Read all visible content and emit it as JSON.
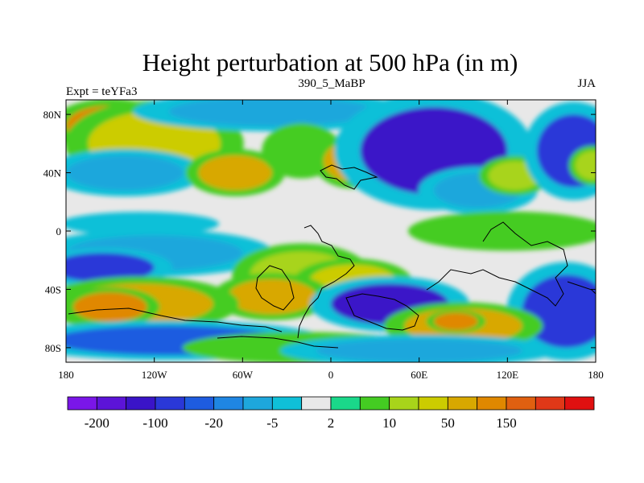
{
  "chart_data": {
    "type": "heatmap",
    "title": "Height perturbation at 500 hPa (in m)",
    "subtitle_left": "Expt = teYFa3",
    "subtitle_center": "390_5_MaBP",
    "subtitle_right": "JJA",
    "xlim": [
      -180,
      180
    ],
    "ylim": [
      -90,
      90
    ],
    "x_ticks": [
      {
        "value": -180,
        "label": "180"
      },
      {
        "value": -120,
        "label": "120W"
      },
      {
        "value": -60,
        "label": "60W"
      },
      {
        "value": 0,
        "label": "0"
      },
      {
        "value": 60,
        "label": "60E"
      },
      {
        "value": 120,
        "label": "120E"
      },
      {
        "value": 180,
        "label": "180"
      }
    ],
    "y_ticks": [
      {
        "value": 80,
        "label": "80N"
      },
      {
        "value": 40,
        "label": "40N"
      },
      {
        "value": 0,
        "label": "0"
      },
      {
        "value": -40,
        "label": "40S"
      },
      {
        "value": -80,
        "label": "80S"
      }
    ],
    "colorbar": {
      "colors": [
        "#7a16e8",
        "#5c14d8",
        "#3a14c8",
        "#2a38d8",
        "#1e5ce0",
        "#1f86e2",
        "#1ea7dc",
        "#0fc0d8",
        "#e8e8e8",
        "#1ad88a",
        "#44cc22",
        "#a8d41a",
        "#cccc00",
        "#d8a800",
        "#e08800",
        "#e06010",
        "#e03818",
        "#e01010"
      ],
      "tick_labels": [
        {
          "boundary": 1,
          "label": "-200"
        },
        {
          "boundary": 3,
          "label": "-100"
        },
        {
          "boundary": 5,
          "label": "-20"
        },
        {
          "boundary": 7,
          "label": "-5"
        },
        {
          "boundary": 9,
          "label": "2"
        },
        {
          "boundary": 11,
          "label": "10"
        },
        {
          "boundary": 13,
          "label": "50"
        },
        {
          "boundary": 15,
          "label": "150"
        }
      ]
    },
    "field_background": "#e8e8e8",
    "field_blobs": [
      {
        "lon": -150,
        "lat": 72,
        "rlon": 30,
        "rlat": 14,
        "v": 3
      },
      {
        "lon": -120,
        "lat": 60,
        "rlon": 45,
        "rlat": 22,
        "v": 2
      },
      {
        "lon": -140,
        "lat": 40,
        "rlon": 40,
        "rlat": 12,
        "v": -1.5
      },
      {
        "lon": -40,
        "lat": 82,
        "rlon": 70,
        "rlat": 10,
        "v": -1.5
      },
      {
        "lon": -65,
        "lat": 40,
        "rlon": 25,
        "rlat": 12,
        "v": 2.5
      },
      {
        "lon": -20,
        "lat": 55,
        "rlon": 20,
        "rlat": 14,
        "v": 1
      },
      {
        "lon": 15,
        "lat": 48,
        "rlon": 20,
        "rlat": 14,
        "v": 2.5
      },
      {
        "lon": 70,
        "lat": 55,
        "rlon": 50,
        "rlat": 30,
        "v": -2.5
      },
      {
        "lon": 100,
        "lat": 28,
        "rlon": 30,
        "rlat": 12,
        "v": -1
      },
      {
        "lon": 100,
        "lat": 28,
        "rlon": 30,
        "rlat": 12,
        "v": -1
      },
      {
        "lon": 125,
        "lat": 38,
        "rlon": 18,
        "rlat": 10,
        "v": 1.5
      },
      {
        "lon": 165,
        "lat": 55,
        "rlon": 25,
        "rlat": 25,
        "v": -2
      },
      {
        "lon": 178,
        "lat": 45,
        "rlon": 12,
        "rlat": 10,
        "v": 1.5
      },
      {
        "lon": -130,
        "lat": 5,
        "rlon": 40,
        "rlat": 6,
        "v": -0.8
      },
      {
        "lon": 120,
        "lat": 0,
        "rlon": 50,
        "rlat": 10,
        "v": 1.2
      },
      {
        "lon": -120,
        "lat": -15,
        "rlon": 60,
        "rlat": 12,
        "v": -1.5
      },
      {
        "lon": -155,
        "lat": -25,
        "rlon": 35,
        "rlat": 10,
        "v": -2
      },
      {
        "lon": -20,
        "lat": -30,
        "rlon": 35,
        "rlat": 16,
        "v": 1.5
      },
      {
        "lon": 15,
        "lat": -35,
        "rlon": 30,
        "rlat": 12,
        "v": 2
      },
      {
        "lon": -40,
        "lat": -45,
        "rlon": 30,
        "rlat": 12,
        "v": 2.5
      },
      {
        "lon": -130,
        "lat": -50,
        "rlon": 50,
        "rlat": 14,
        "v": 2.5
      },
      {
        "lon": -150,
        "lat": -52,
        "rlon": 25,
        "rlat": 10,
        "v": 3
      },
      {
        "lon": 40,
        "lat": -50,
        "rlon": 40,
        "rlat": 14,
        "v": -2.5
      },
      {
        "lon": 160,
        "lat": -55,
        "rlon": 30,
        "rlat": 25,
        "v": -2
      },
      {
        "lon": 90,
        "lat": -65,
        "rlon": 40,
        "rlat": 12,
        "v": 2.5
      },
      {
        "lon": 85,
        "lat": -62,
        "rlon": 15,
        "rlat": 6,
        "v": 3
      },
      {
        "lon": -110,
        "lat": -75,
        "rlon": 80,
        "rlat": 10,
        "v": -1.8
      },
      {
        "lon": -20,
        "lat": -80,
        "rlon": 60,
        "rlat": 8,
        "v": 1.2
      },
      {
        "lon": 60,
        "lat": -82,
        "rlon": 70,
        "rlat": 8,
        "v": -1.5
      }
    ]
  }
}
